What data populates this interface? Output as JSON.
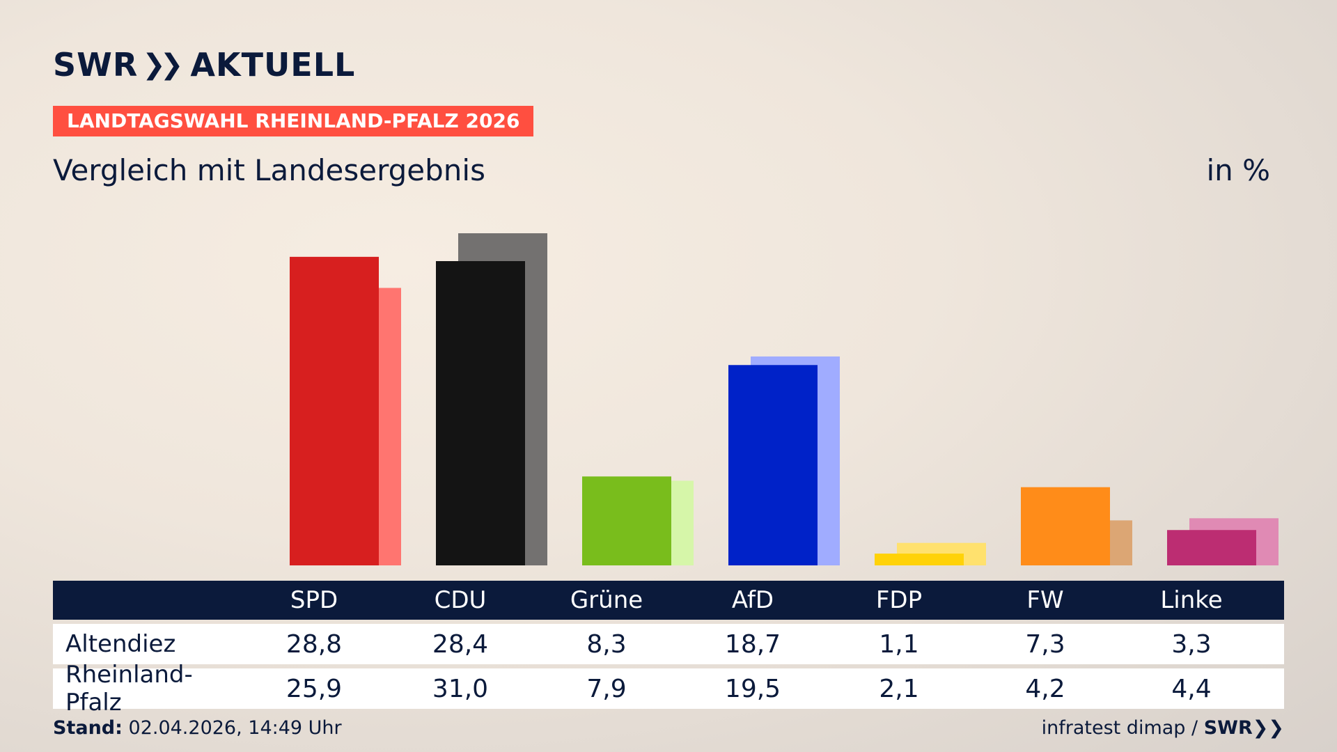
{
  "header": {
    "logo_text": "SWR",
    "logo_suffix": "AKTUELL",
    "badge": "LANDTAGSWAHL RHEINLAND-PFALZ 2026",
    "subtitle": "Vergleich mit Landesergebnis",
    "unit": "in %"
  },
  "table": {
    "rows": [
      {
        "label": "Altendiez"
      },
      {
        "label": "Rheinland-Pfalz"
      }
    ],
    "altendiez_values": [
      "28,8",
      "28,4",
      "8,3",
      "18,7",
      "1,1",
      "7,3",
      "3,3"
    ],
    "rlp_values": [
      "25,9",
      "31,0",
      "7,9",
      "19,5",
      "2,1",
      "4,2",
      "4,4"
    ]
  },
  "footer": {
    "stand_label": "Stand:",
    "stand_value": "02.04.2026, 14:49 Uhr",
    "source": "infratest dimap /",
    "source_brand": "SWR"
  },
  "chart_data": {
    "type": "bar",
    "categories": [
      "SPD",
      "CDU",
      "Grüne",
      "AfD",
      "FDP",
      "FW",
      "Linke"
    ],
    "series": [
      {
        "name": "Altendiez",
        "values": [
          28.8,
          28.4,
          8.3,
          18.7,
          1.1,
          7.3,
          3.3
        ]
      },
      {
        "name": "Rheinland-Pfalz",
        "values": [
          25.9,
          31.0,
          7.9,
          19.5,
          2.1,
          4.2,
          4.4
        ]
      }
    ],
    "colors_primary": [
      "#d71f1f",
      "#141414",
      "#79bd1c",
      "#0022c8",
      "#ffd208",
      "#ff8c19",
      "#bc2d72"
    ],
    "colors_secondary": [
      "#ff7570",
      "#737170",
      "#d6f6a9",
      "#a0acff",
      "#ffe16e",
      "#dca674",
      "#e08ab4"
    ],
    "ylim": [
      0,
      31
    ],
    "grid": false,
    "legend": "none"
  }
}
